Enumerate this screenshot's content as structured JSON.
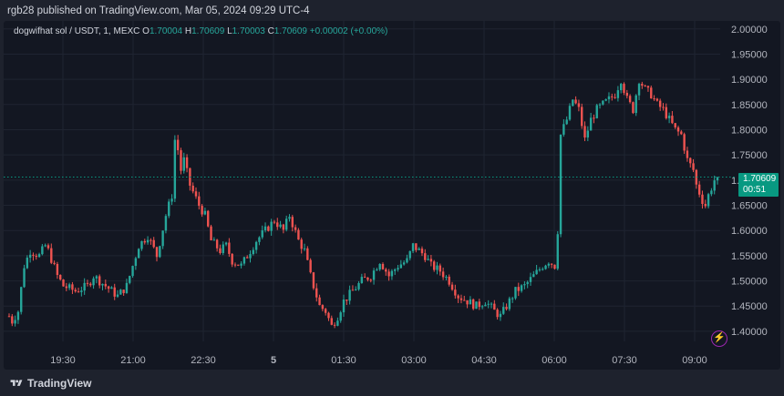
{
  "header": {
    "published": "rgb28 published on TradingView.com, Mar 05, 2024 09:29 UTC-4"
  },
  "legend": {
    "symbol": "dogwifhat sol / USDT, 1, MEXC",
    "o_label": "O",
    "o": "1.70004",
    "h_label": "H",
    "h": "1.70609",
    "l_label": "L",
    "l": "1.70003",
    "c_label": "C",
    "c": "1.70609",
    "change": "+0.00002 (+0.00%)"
  },
  "price_tag": {
    "price": "1.70609",
    "countdown": "00:51"
  },
  "footer": {
    "brand": "TradingView",
    "logo_icon": "tradingview-logo-icon",
    "alert_icon": "lightning-icon"
  },
  "colors": {
    "up": "#26a69a",
    "down": "#ef5350",
    "background": "#131722",
    "last_price": "#089981"
  },
  "chart_data": {
    "type": "candlestick",
    "x_tick_labels": [
      "19:30",
      "21:00",
      "22:30",
      "5",
      "01:30",
      "03:00",
      "04:30",
      "06:00",
      "07:30",
      "09:00"
    ],
    "y_tick_labels": [
      "2.00000",
      "1.95000",
      "1.90000",
      "1.85000",
      "1.80000",
      "1.75000",
      "1.70000",
      "1.65000",
      "1.60000",
      "1.55000",
      "1.50000",
      "1.45000",
      "1.40000"
    ],
    "ylim": [
      1.38,
      2.005
    ],
    "last_price": 1.70609,
    "anchors": [
      [
        0,
        1.43
      ],
      [
        1,
        1.42
      ],
      [
        3,
        1.44
      ],
      [
        5,
        1.53
      ],
      [
        7,
        1.56
      ],
      [
        10,
        1.55
      ],
      [
        12,
        1.57
      ],
      [
        13,
        1.56
      ],
      [
        16,
        1.51
      ],
      [
        18,
        1.49
      ],
      [
        22,
        1.48
      ],
      [
        26,
        1.49
      ],
      [
        28,
        1.51
      ],
      [
        32,
        1.49
      ],
      [
        36,
        1.47
      ],
      [
        39,
        1.49
      ],
      [
        43,
        1.57
      ],
      [
        46,
        1.59
      ],
      [
        49,
        1.55
      ],
      [
        52,
        1.63
      ],
      [
        54,
        1.67
      ],
      [
        55,
        1.78
      ],
      [
        56,
        1.76
      ],
      [
        57,
        1.72
      ],
      [
        58,
        1.74
      ],
      [
        60,
        1.69
      ],
      [
        63,
        1.65
      ],
      [
        65,
        1.63
      ],
      [
        67,
        1.58
      ],
      [
        70,
        1.56
      ],
      [
        72,
        1.57
      ],
      [
        74,
        1.54
      ],
      [
        77,
        1.53
      ],
      [
        79,
        1.55
      ],
      [
        82,
        1.58
      ],
      [
        85,
        1.6
      ],
      [
        88,
        1.62
      ],
      [
        91,
        1.6
      ],
      [
        93,
        1.63
      ],
      [
        96,
        1.58
      ],
      [
        98,
        1.56
      ],
      [
        100,
        1.51
      ],
      [
        103,
        1.45
      ],
      [
        105,
        1.44
      ],
      [
        107,
        1.41
      ],
      [
        109,
        1.43
      ],
      [
        111,
        1.46
      ],
      [
        114,
        1.48
      ],
      [
        117,
        1.5
      ],
      [
        120,
        1.51
      ],
      [
        123,
        1.54
      ],
      [
        126,
        1.51
      ],
      [
        129,
        1.53
      ],
      [
        132,
        1.54
      ],
      [
        134,
        1.57
      ],
      [
        136,
        1.56
      ],
      [
        138,
        1.55
      ],
      [
        140,
        1.53
      ],
      [
        143,
        1.52
      ],
      [
        146,
        1.5
      ],
      [
        149,
        1.47
      ],
      [
        152,
        1.46
      ],
      [
        155,
        1.45
      ],
      [
        158,
        1.46
      ],
      [
        161,
        1.44
      ],
      [
        163,
        1.43
      ],
      [
        165,
        1.45
      ],
      [
        168,
        1.48
      ],
      [
        171,
        1.49
      ],
      [
        174,
        1.51
      ],
      [
        177,
        1.53
      ],
      [
        179,
        1.54
      ],
      [
        181,
        1.53
      ],
      [
        182,
        1.6
      ],
      [
        183,
        1.79
      ],
      [
        185,
        1.82
      ],
      [
        187,
        1.86
      ],
      [
        189,
        1.84
      ],
      [
        191,
        1.78
      ],
      [
        193,
        1.82
      ],
      [
        195,
        1.84
      ],
      [
        197,
        1.85
      ],
      [
        199,
        1.86
      ],
      [
        201,
        1.87
      ],
      [
        203,
        1.9
      ],
      [
        205,
        1.86
      ],
      [
        207,
        1.84
      ],
      [
        209,
        1.9
      ],
      [
        211,
        1.88
      ],
      [
        213,
        1.87
      ],
      [
        215,
        1.85
      ],
      [
        217,
        1.84
      ],
      [
        219,
        1.82
      ],
      [
        221,
        1.8
      ],
      [
        223,
        1.79
      ],
      [
        225,
        1.74
      ],
      [
        227,
        1.72
      ],
      [
        228,
        1.69
      ],
      [
        230,
        1.66
      ],
      [
        231,
        1.65
      ],
      [
        232,
        1.67
      ],
      [
        234,
        1.7
      ],
      [
        235,
        1.706
      ]
    ]
  }
}
